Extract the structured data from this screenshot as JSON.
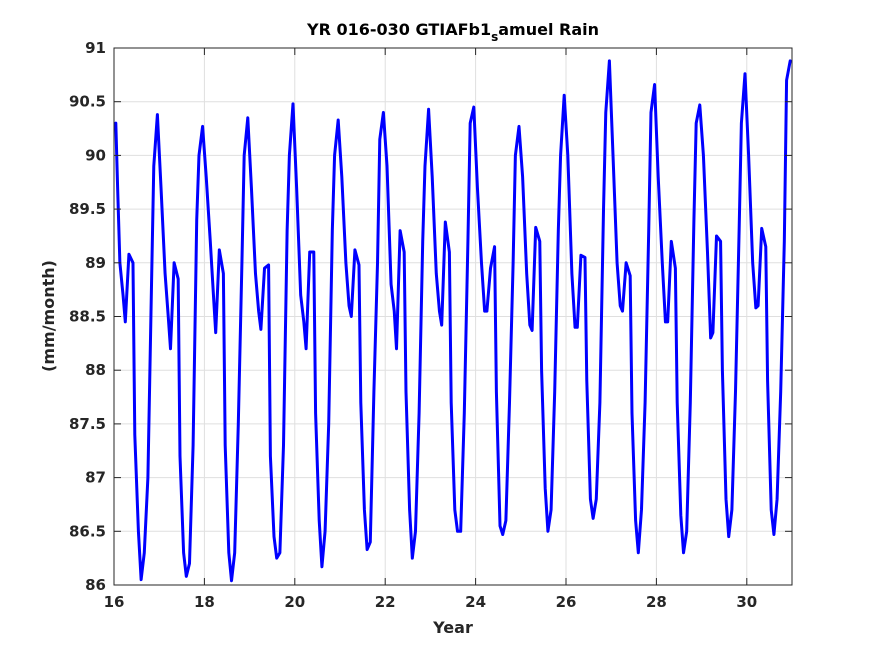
{
  "chart_data": {
    "type": "line",
    "title": {
      "prefix": "YR 016-030 GTIAFb1",
      "subscript": "s",
      "suffix": "amuel Rain"
    },
    "xlabel": "Year",
    "ylabel": "(mm/month)",
    "xlim": [
      16,
      31
    ],
    "ylim": [
      86,
      91
    ],
    "xticks": [
      16,
      18,
      20,
      22,
      24,
      26,
      28,
      30
    ],
    "xtick_labels": [
      "16",
      "18",
      "20",
      "22",
      "24",
      "26",
      "28",
      "30"
    ],
    "yticks": [
      86,
      86.5,
      87,
      87.5,
      88,
      88.5,
      89,
      89.5,
      90,
      90.5,
      91
    ],
    "ytick_labels": [
      "86",
      "86.5",
      "87",
      "87.5",
      "88",
      "88.5",
      "89",
      "89.5",
      "90",
      "90.5",
      "91"
    ],
    "grid": true,
    "series": [
      {
        "color": "#0000ff",
        "points": [
          [
            16.04,
            90.3
          ],
          [
            16.08,
            89.7
          ],
          [
            16.13,
            89.0
          ],
          [
            16.2,
            88.7
          ],
          [
            16.25,
            88.45
          ],
          [
            16.33,
            89.08
          ],
          [
            16.42,
            89.0
          ],
          [
            16.46,
            87.4
          ],
          [
            16.54,
            86.5
          ],
          [
            16.6,
            86.05
          ],
          [
            16.67,
            86.3
          ],
          [
            16.75,
            87.0
          ],
          [
            16.83,
            88.8
          ],
          [
            16.88,
            89.9
          ],
          [
            16.96,
            90.38
          ],
          [
            17.04,
            89.7
          ],
          [
            17.13,
            88.9
          ],
          [
            17.2,
            88.5
          ],
          [
            17.25,
            88.2
          ],
          [
            17.33,
            89.0
          ],
          [
            17.42,
            88.85
          ],
          [
            17.46,
            87.2
          ],
          [
            17.54,
            86.3
          ],
          [
            17.6,
            86.08
          ],
          [
            17.67,
            86.2
          ],
          [
            17.75,
            87.3
          ],
          [
            17.83,
            89.4
          ],
          [
            17.88,
            90.0
          ],
          [
            17.96,
            90.27
          ],
          [
            18.04,
            89.8
          ],
          [
            18.13,
            89.2
          ],
          [
            18.2,
            88.7
          ],
          [
            18.25,
            88.35
          ],
          [
            18.33,
            89.12
          ],
          [
            18.42,
            88.9
          ],
          [
            18.46,
            87.3
          ],
          [
            18.54,
            86.3
          ],
          [
            18.6,
            86.04
          ],
          [
            18.67,
            86.3
          ],
          [
            18.75,
            87.5
          ],
          [
            18.83,
            89.0
          ],
          [
            18.88,
            90.0
          ],
          [
            18.96,
            90.35
          ],
          [
            19.04,
            89.7
          ],
          [
            19.13,
            88.9
          ],
          [
            19.2,
            88.55
          ],
          [
            19.25,
            88.38
          ],
          [
            19.33,
            88.95
          ],
          [
            19.42,
            88.98
          ],
          [
            19.46,
            87.2
          ],
          [
            19.54,
            86.45
          ],
          [
            19.6,
            86.25
          ],
          [
            19.67,
            86.3
          ],
          [
            19.75,
            87.3
          ],
          [
            19.83,
            89.3
          ],
          [
            19.88,
            90.0
          ],
          [
            19.96,
            90.48
          ],
          [
            20.04,
            89.7
          ],
          [
            20.13,
            88.7
          ],
          [
            20.2,
            88.45
          ],
          [
            20.25,
            88.2
          ],
          [
            20.33,
            89.1
          ],
          [
            20.42,
            89.1
          ],
          [
            20.46,
            87.6
          ],
          [
            20.54,
            86.6
          ],
          [
            20.6,
            86.17
          ],
          [
            20.67,
            86.5
          ],
          [
            20.75,
            87.5
          ],
          [
            20.83,
            89.3
          ],
          [
            20.88,
            90.0
          ],
          [
            20.96,
            90.33
          ],
          [
            21.04,
            89.8
          ],
          [
            21.13,
            89.0
          ],
          [
            21.2,
            88.6
          ],
          [
            21.25,
            88.5
          ],
          [
            21.33,
            89.12
          ],
          [
            21.42,
            88.98
          ],
          [
            21.46,
            87.7
          ],
          [
            21.54,
            86.7
          ],
          [
            21.6,
            86.33
          ],
          [
            21.67,
            86.4
          ],
          [
            21.75,
            87.8
          ],
          [
            21.83,
            89.0
          ],
          [
            21.88,
            90.15
          ],
          [
            21.96,
            90.4
          ],
          [
            22.04,
            89.9
          ],
          [
            22.13,
            88.8
          ],
          [
            22.2,
            88.55
          ],
          [
            22.25,
            88.2
          ],
          [
            22.33,
            89.3
          ],
          [
            22.42,
            89.1
          ],
          [
            22.46,
            87.8
          ],
          [
            22.54,
            86.7
          ],
          [
            22.6,
            86.25
          ],
          [
            22.67,
            86.5
          ],
          [
            22.75,
            87.6
          ],
          [
            22.83,
            89.2
          ],
          [
            22.88,
            89.9
          ],
          [
            22.96,
            90.43
          ],
          [
            23.04,
            89.8
          ],
          [
            23.13,
            88.9
          ],
          [
            23.2,
            88.55
          ],
          [
            23.25,
            88.42
          ],
          [
            23.33,
            89.38
          ],
          [
            23.42,
            89.1
          ],
          [
            23.46,
            87.7
          ],
          [
            23.54,
            86.7
          ],
          [
            23.6,
            86.5
          ],
          [
            23.67,
            86.5
          ],
          [
            23.75,
            87.6
          ],
          [
            23.83,
            89.2
          ],
          [
            23.88,
            90.3
          ],
          [
            23.96,
            90.45
          ],
          [
            24.04,
            89.7
          ],
          [
            24.13,
            89.0
          ],
          [
            24.2,
            88.55
          ],
          [
            24.25,
            88.55
          ],
          [
            24.33,
            88.95
          ],
          [
            24.42,
            89.15
          ],
          [
            24.46,
            87.8
          ],
          [
            24.54,
            86.55
          ],
          [
            24.6,
            86.47
          ],
          [
            24.67,
            86.6
          ],
          [
            24.75,
            87.7
          ],
          [
            24.83,
            89.0
          ],
          [
            24.88,
            90.0
          ],
          [
            24.96,
            90.27
          ],
          [
            25.04,
            89.8
          ],
          [
            25.13,
            88.9
          ],
          [
            25.2,
            88.42
          ],
          [
            25.25,
            88.37
          ],
          [
            25.33,
            89.33
          ],
          [
            25.42,
            89.2
          ],
          [
            25.46,
            88.0
          ],
          [
            25.54,
            86.9
          ],
          [
            25.6,
            86.5
          ],
          [
            25.67,
            86.7
          ],
          [
            25.75,
            87.8
          ],
          [
            25.83,
            89.3
          ],
          [
            25.88,
            90.0
          ],
          [
            25.96,
            90.56
          ],
          [
            26.04,
            90.0
          ],
          [
            26.13,
            88.9
          ],
          [
            26.2,
            88.4
          ],
          [
            26.25,
            88.4
          ],
          [
            26.33,
            89.07
          ],
          [
            26.42,
            89.05
          ],
          [
            26.46,
            87.9
          ],
          [
            26.54,
            86.8
          ],
          [
            26.6,
            86.62
          ],
          [
            26.67,
            86.8
          ],
          [
            26.75,
            87.7
          ],
          [
            26.83,
            89.5
          ],
          [
            26.88,
            90.4
          ],
          [
            26.96,
            90.88
          ],
          [
            27.04,
            90.0
          ],
          [
            27.13,
            89.0
          ],
          [
            27.2,
            88.6
          ],
          [
            27.25,
            88.55
          ],
          [
            27.33,
            89.0
          ],
          [
            27.42,
            88.88
          ],
          [
            27.46,
            87.6
          ],
          [
            27.54,
            86.6
          ],
          [
            27.6,
            86.3
          ],
          [
            27.67,
            86.7
          ],
          [
            27.75,
            87.7
          ],
          [
            27.83,
            89.3
          ],
          [
            27.88,
            90.4
          ],
          [
            27.96,
            90.66
          ],
          [
            28.04,
            89.8
          ],
          [
            28.13,
            89.0
          ],
          [
            28.2,
            88.45
          ],
          [
            28.25,
            88.45
          ],
          [
            28.33,
            89.2
          ],
          [
            28.42,
            88.95
          ],
          [
            28.46,
            87.7
          ],
          [
            28.54,
            86.65
          ],
          [
            28.6,
            86.3
          ],
          [
            28.67,
            86.5
          ],
          [
            28.75,
            87.7
          ],
          [
            28.83,
            89.4
          ],
          [
            28.88,
            90.3
          ],
          [
            28.96,
            90.47
          ],
          [
            29.04,
            90.0
          ],
          [
            29.13,
            89.1
          ],
          [
            29.2,
            88.3
          ],
          [
            29.25,
            88.35
          ],
          [
            29.33,
            89.25
          ],
          [
            29.42,
            89.2
          ],
          [
            29.46,
            88.0
          ],
          [
            29.54,
            86.8
          ],
          [
            29.6,
            86.45
          ],
          [
            29.67,
            86.7
          ],
          [
            29.75,
            87.8
          ],
          [
            29.83,
            89.3
          ],
          [
            29.88,
            90.3
          ],
          [
            29.96,
            90.76
          ],
          [
            30.04,
            90.0
          ],
          [
            30.13,
            89.0
          ],
          [
            30.2,
            88.58
          ],
          [
            30.25,
            88.6
          ],
          [
            30.33,
            89.32
          ],
          [
            30.42,
            89.15
          ],
          [
            30.46,
            87.9
          ],
          [
            30.54,
            86.7
          ],
          [
            30.6,
            86.47
          ],
          [
            30.67,
            86.8
          ],
          [
            30.75,
            87.8
          ],
          [
            30.83,
            89.2
          ],
          [
            30.88,
            90.7
          ],
          [
            30.96,
            90.88
          ]
        ]
      }
    ]
  }
}
